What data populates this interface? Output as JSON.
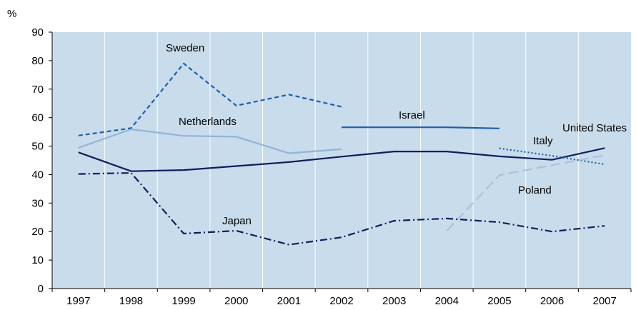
{
  "chart_data": {
    "type": "line",
    "ylabel": "%",
    "ylim": [
      0,
      90
    ],
    "yticks": [
      0,
      10,
      20,
      30,
      40,
      50,
      60,
      70,
      80,
      90
    ],
    "x": [
      "1997",
      "1998",
      "1999",
      "2000",
      "2001",
      "2002",
      "2003",
      "2004",
      "2005",
      "2006",
      "2007"
    ],
    "grid": "vertical",
    "legend": "none",
    "plot_background": "#C8DCEB",
    "series": [
      {
        "name": "Sweden",
        "color": "#1F5FA8",
        "style": "dashed",
        "values": [
          53.7,
          56.3,
          79,
          64.2,
          68.1,
          63.8,
          null,
          null,
          null,
          null,
          null
        ]
      },
      {
        "name": "Netherlands",
        "color": "#93B3D8",
        "style": "solid",
        "values": [
          49.4,
          55.9,
          53.6,
          53.3,
          47.5,
          48.9,
          null,
          null,
          null,
          null,
          null
        ]
      },
      {
        "name": "Israel",
        "color": "#1F5FA8",
        "style": "solid",
        "values": [
          null,
          null,
          null,
          null,
          null,
          56.6,
          56.6,
          56.6,
          56.2,
          null,
          null
        ]
      },
      {
        "name": "United States",
        "color": "#0F1F5C",
        "style": "solid",
        "values": [
          47.8,
          41.2,
          41.6,
          43,
          44.4,
          46.3,
          48.1,
          48.1,
          46.4,
          45.2,
          49.3
        ]
      },
      {
        "name": "Italy",
        "color": "#1F5FA8",
        "style": "dotted",
        "values": [
          null,
          null,
          null,
          null,
          null,
          null,
          null,
          null,
          49.2,
          46.6,
          43.6
        ]
      },
      {
        "name": "Poland",
        "color": "#A8C3E0",
        "style": "longdash",
        "values": [
          null,
          null,
          null,
          null,
          null,
          null,
          null,
          20.3,
          39.8,
          43.3,
          46.8
        ]
      },
      {
        "name": "Japan",
        "color": "#0F1F5C",
        "style": "dashdot",
        "values": [
          40.2,
          40.6,
          19.3,
          20.3,
          15.4,
          18,
          23.8,
          24.6,
          23.3,
          20,
          22
        ]
      }
    ]
  }
}
